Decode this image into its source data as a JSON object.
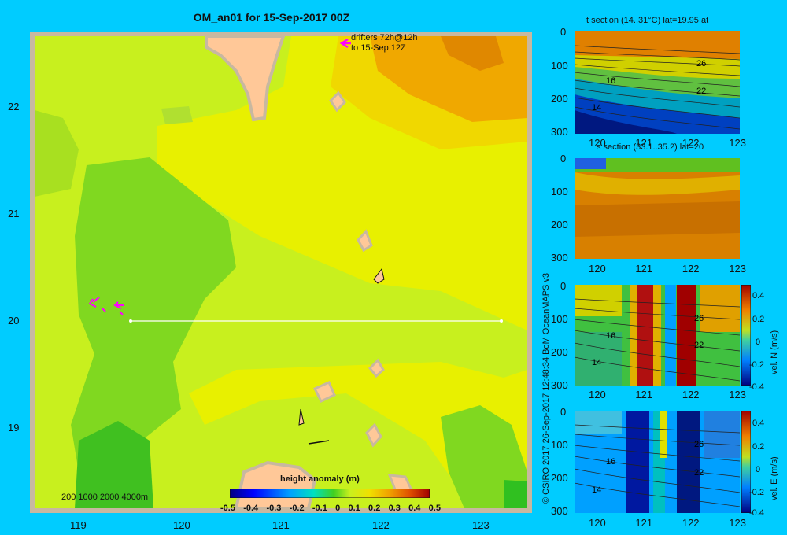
{
  "main_map": {
    "title": "OM_an01 for 15-Sep-2017 00Z",
    "x_ticks": [
      "119",
      "120",
      "121",
      "122",
      "123"
    ],
    "y_ticks": [
      "22",
      "21",
      "20",
      "19"
    ],
    "drifters_label_line1": "drifters 72h@12h",
    "drifters_label_line2": "to 15-Sep 12Z",
    "depth_legend": "200  1000  2000  4000m",
    "colorbar": {
      "title": "height anomaly  (m)",
      "ticks": [
        "-0.5",
        "-0.4",
        "-0.3",
        "-0.2",
        "-0.1",
        "0",
        "0.1",
        "0.2",
        "0.3",
        "0.4",
        "0.5"
      ]
    },
    "section_line": {
      "lat": 20,
      "lon_start": 119.5,
      "lon_end": 123.2
    }
  },
  "side_panels": [
    {
      "title": "t section (14..31°C) lat=19.95 at",
      "x_ticks": [
        "120",
        "121",
        "122",
        "123"
      ],
      "y_ticks": [
        "0",
        "100",
        "200",
        "300"
      ],
      "contour_labels": [
        "16",
        "26",
        "22",
        "14"
      ],
      "colorbar": null
    },
    {
      "title": "s section (33.1..35.2) lat=20",
      "x_ticks": [
        "120",
        "121",
        "122",
        "123"
      ],
      "y_ticks": [
        "0",
        "100",
        "200",
        "300"
      ],
      "contour_labels": [],
      "colorbar": null
    },
    {
      "title": "",
      "x_ticks": [
        "120",
        "121",
        "122",
        "123"
      ],
      "y_ticks": [
        "0",
        "100",
        "200",
        "300"
      ],
      "contour_labels": [
        "16",
        "26",
        "22",
        "14"
      ],
      "colorbar": {
        "ticks": [
          "0.4",
          "0.2",
          "0",
          "-0.2",
          "-0.4"
        ],
        "label": "vel. N  (m/s)"
      }
    },
    {
      "title": "",
      "x_ticks": [
        "120",
        "121",
        "122",
        "123"
      ],
      "y_ticks": [
        "0",
        "100",
        "200",
        "300"
      ],
      "contour_labels": [
        "16",
        "26",
        "22",
        "14"
      ],
      "colorbar": {
        "ticks": [
          "0.4",
          "0.2",
          "0",
          "-0.2",
          "-0.4"
        ],
        "label": "vel. E  (m/s)"
      }
    }
  ],
  "credit": "© CSIRO 2017   26-Sep-2017 12:48:34 BoM OceanMAPS v3"
}
